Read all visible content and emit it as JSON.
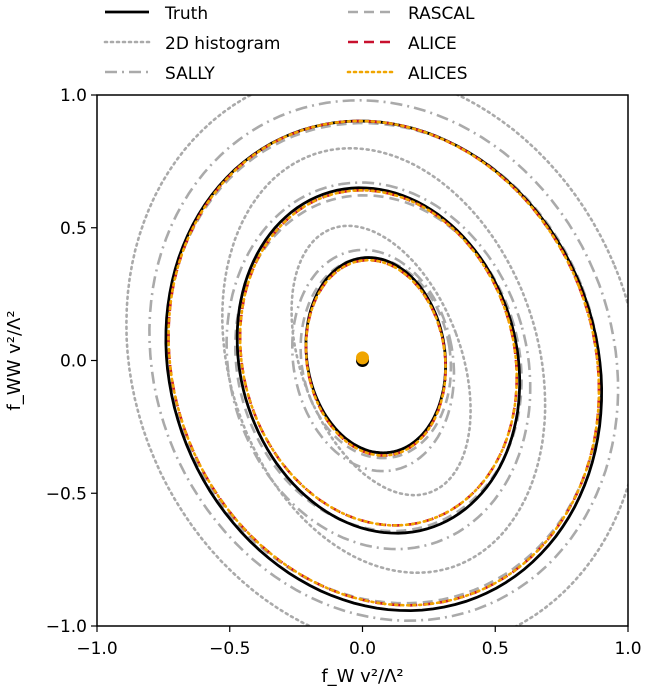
{
  "chart_data": {
    "type": "line",
    "title": "",
    "xlabel": "f_W v²/Λ²",
    "ylabel": "f_WW v²/Λ²",
    "xlim": [
      -1.0,
      1.0
    ],
    "ylim": [
      -1.0,
      1.0
    ],
    "xticks": [
      "−1.0",
      "−0.5",
      "0.0",
      "0.5",
      "1.0"
    ],
    "yticks": [
      "1.0",
      "0.5",
      "0.0",
      "−0.5",
      "−1.0"
    ],
    "grid": false,
    "legend_position": "top, above plot, 2 columns",
    "colors": {
      "truth": "#000000",
      "histogram": "#aaaaaa",
      "sally": "#aaaaaa",
      "rascal": "#aaaaaa",
      "alice": "#c8102e",
      "alices": "#f0a500"
    },
    "series": [
      {
        "name": "Truth",
        "style": "solid",
        "color": "#000000",
        "contours": [
          {
            "cx": 0.05,
            "cy": 0.02,
            "rx": 0.26,
            "ry": 0.37,
            "tilt": 0.15
          },
          {
            "cx": 0.06,
            "cy": 0.0,
            "rx": 0.52,
            "ry": 0.66,
            "tilt": 0.28
          },
          {
            "cx": 0.08,
            "cy": -0.02,
            "rx": 0.8,
            "ry": 0.94,
            "tilt": 0.38
          }
        ]
      },
      {
        "name": "2D histogram",
        "style": "dotted",
        "color": "#aaaaaa",
        "contours": [
          {
            "cx": 0.07,
            "cy": 0.0,
            "rx": 0.3,
            "ry": 0.53,
            "tilt": 0.36
          },
          {
            "cx": 0.08,
            "cy": 0.0,
            "rx": 0.58,
            "ry": 0.82,
            "tilt": 0.32
          },
          {
            "cx": 0.08,
            "cy": 0.0,
            "rx": 0.94,
            "ry": 1.12,
            "tilt": 0.4
          }
        ]
      },
      {
        "name": "SALLY",
        "style": "dashdot",
        "color": "#aaaaaa",
        "contours": [
          {
            "cx": 0.04,
            "cy": 0.0,
            "rx": 0.3,
            "ry": 0.42,
            "tilt": 0.18
          },
          {
            "cx": 0.06,
            "cy": -0.02,
            "rx": 0.56,
            "ry": 0.7,
            "tilt": 0.28
          },
          {
            "cx": 0.08,
            "cy": 0.0,
            "rx": 0.86,
            "ry": 1.0,
            "tilt": 0.4
          }
        ]
      },
      {
        "name": "RASCAL",
        "style": "dashed",
        "color": "#aaaaaa",
        "contours": [
          {
            "cx": 0.05,
            "cy": 0.01,
            "rx": 0.28,
            "ry": 0.38,
            "tilt": 0.16
          },
          {
            "cx": 0.06,
            "cy": -0.01,
            "rx": 0.53,
            "ry": 0.64,
            "tilt": 0.28
          },
          {
            "cx": 0.08,
            "cy": -0.01,
            "rx": 0.8,
            "ry": 0.92,
            "tilt": 0.38
          }
        ]
      },
      {
        "name": "ALICE",
        "style": "dashed",
        "color": "#c8102e",
        "contours": [
          {
            "cx": 0.05,
            "cy": 0.01,
            "rx": 0.26,
            "ry": 0.37,
            "tilt": 0.15
          },
          {
            "cx": 0.06,
            "cy": 0.01,
            "rx": 0.51,
            "ry": 0.64,
            "tilt": 0.28
          },
          {
            "cx": 0.08,
            "cy": -0.01,
            "rx": 0.79,
            "ry": 0.93,
            "tilt": 0.38
          }
        ]
      },
      {
        "name": "ALICES",
        "style": "dotted",
        "color": "#f0a500",
        "contours": [
          {
            "cx": 0.05,
            "cy": 0.01,
            "rx": 0.26,
            "ry": 0.37,
            "tilt": 0.15
          },
          {
            "cx": 0.06,
            "cy": 0.01,
            "rx": 0.51,
            "ry": 0.64,
            "tilt": 0.28
          },
          {
            "cx": 0.08,
            "cy": -0.01,
            "rx": 0.79,
            "ry": 0.93,
            "tilt": 0.38
          }
        ]
      }
    ],
    "best_fit_points": [
      {
        "series": "Truth",
        "x": 0.0,
        "y": 0.0,
        "color": "#000000"
      },
      {
        "series": "ALICES",
        "x": 0.0,
        "y": 0.01,
        "color": "#f0a500"
      }
    ]
  }
}
